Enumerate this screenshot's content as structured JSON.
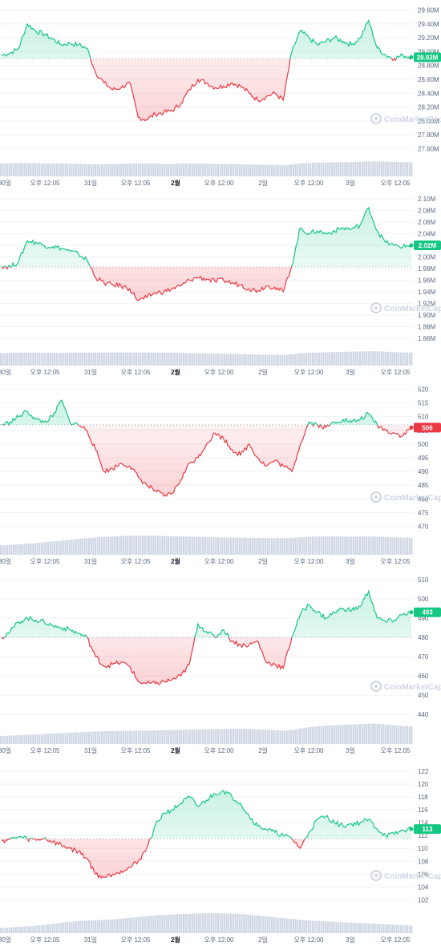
{
  "watermark": "CoinMarketCap",
  "colors": {
    "up": "#16c784",
    "down": "#ea3943",
    "volume": "#cfd6e4",
    "grid": "#f0f2f5",
    "baseline": "#a6b0c3"
  },
  "chart_data": [
    {
      "type": "line",
      "yticks": [
        "29.60M",
        "29.40M",
        "29.20M",
        "29.00M",
        "28.80M",
        "28.60M",
        "28.40M",
        "28.20M",
        "28.00M",
        "27.80M",
        "27.60M"
      ],
      "ylim": [
        27.57,
        29.63
      ],
      "baseline": 28.9,
      "current_label": "28.92M",
      "current_value": 28.92,
      "xticks": [
        "30일",
        "오후 12:05",
        "31일",
        "오후 12:05",
        "2월",
        "오후 12:00",
        "2일",
        "오후 12:00",
        "3일",
        "오후 12:05"
      ],
      "series": [
        {
          "values": [
            28.95,
            28.98,
            29.05,
            29.4,
            29.3,
            29.25,
            29.18,
            29.1,
            29.12,
            29.1,
            29.05,
            28.7,
            28.55,
            28.45,
            28.48,
            28.55,
            28.05,
            28.02,
            28.1,
            28.12,
            28.15,
            28.25,
            28.45,
            28.6,
            28.55,
            28.48,
            28.5,
            28.55,
            28.5,
            28.4,
            28.3,
            28.35,
            28.4,
            28.3,
            29.0,
            29.3,
            29.2,
            29.1,
            29.15,
            29.2,
            29.15,
            29.1,
            29.2,
            29.45,
            29.05,
            28.95,
            28.9,
            28.95,
            28.92
          ]
        }
      ],
      "volume": [
        0.62,
        0.63,
        0.64,
        0.64,
        0.63,
        0.62,
        0.62,
        0.62,
        0.61,
        0.6,
        0.59,
        0.58,
        0.58,
        0.59,
        0.6,
        0.61,
        0.62,
        0.62,
        0.61,
        0.6,
        0.6,
        0.61,
        0.62,
        0.62,
        0.61,
        0.6,
        0.6,
        0.59,
        0.58,
        0.57,
        0.56,
        0.55,
        0.55,
        0.54,
        0.58,
        0.62,
        0.65,
        0.66,
        0.67,
        0.68,
        0.68,
        0.69,
        0.7,
        0.72,
        0.72,
        0.7,
        0.69,
        0.68,
        0.68
      ]
    },
    {
      "type": "line",
      "yticks": [
        "2.10M",
        "2.08M",
        "2.06M",
        "2.04M",
        "2.02M",
        "2.00M",
        "1.98M",
        "1.96M",
        "1.94M",
        "1.92M",
        "1.90M",
        "1.88M",
        "1.86M"
      ],
      "ylim": [
        1.857,
        2.103
      ],
      "baseline": 1.983,
      "current_label": "2.02M",
      "current_value": 2.02,
      "xticks": [
        "30일",
        "오후 12:05",
        "31일",
        "오후 12:05",
        "2월",
        "오후 12:00",
        "2일",
        "오후 12:00",
        "3일",
        "오후 12:05"
      ],
      "series": [
        {
          "values": [
            1.985,
            1.983,
            1.992,
            2.028,
            2.025,
            2.02,
            2.018,
            2.015,
            2.01,
            2.005,
            1.995,
            1.965,
            1.955,
            1.952,
            1.95,
            1.945,
            1.925,
            1.93,
            1.938,
            1.94,
            1.945,
            1.95,
            1.96,
            1.965,
            1.962,
            1.958,
            1.96,
            1.955,
            1.952,
            1.945,
            1.942,
            1.95,
            1.948,
            1.94,
            1.985,
            2.05,
            2.04,
            2.045,
            2.04,
            2.045,
            2.05,
            2.048,
            2.055,
            2.085,
            2.045,
            2.025,
            2.02,
            2.018,
            2.02
          ]
        }
      ],
      "volume": [
        0.6,
        0.61,
        0.62,
        0.62,
        0.62,
        0.61,
        0.61,
        0.61,
        0.61,
        0.62,
        0.62,
        0.62,
        0.63,
        0.63,
        0.63,
        0.63,
        0.63,
        0.63,
        0.62,
        0.62,
        0.62,
        0.61,
        0.6,
        0.59,
        0.58,
        0.58,
        0.57,
        0.56,
        0.55,
        0.54,
        0.53,
        0.52,
        0.52,
        0.51,
        0.55,
        0.6,
        0.62,
        0.63,
        0.64,
        0.65,
        0.66,
        0.67,
        0.68,
        0.69,
        0.68,
        0.66,
        0.64,
        0.63,
        0.62
      ]
    },
    {
      "type": "line",
      "yticks": [
        "520",
        "515",
        "510",
        "505",
        "500",
        "495",
        "490",
        "485",
        "480",
        "475",
        "470"
      ],
      "ylim": [
        469,
        521
      ],
      "baseline": 507,
      "current_label": "506",
      "current_value": 506,
      "xticks": [
        "30일",
        "오후 12:05",
        "31일",
        "오후 12:05",
        "2월",
        "오후 12:00",
        "2일",
        "오후 12:00",
        "3일",
        "오후 12:05"
      ],
      "series": [
        {
          "values": [
            507,
            508,
            510,
            512,
            509,
            508,
            510,
            516,
            508,
            507,
            505,
            498,
            490,
            491,
            493,
            492,
            488,
            485,
            483,
            481,
            482,
            487,
            493,
            495,
            500,
            504,
            502,
            498,
            496,
            500,
            495,
            492,
            494,
            492,
            490,
            500,
            508,
            507,
            506,
            508,
            509,
            508,
            509,
            511,
            507,
            505,
            504,
            503,
            506
          ]
        }
      ],
      "volume": [
        0.45,
        0.47,
        0.5,
        0.53,
        0.56,
        0.6,
        0.64,
        0.68,
        0.72,
        0.76,
        0.8,
        0.83,
        0.86,
        0.88,
        0.9,
        0.91,
        0.92,
        0.92,
        0.91,
        0.9,
        0.89,
        0.88,
        0.87,
        0.86,
        0.85,
        0.84,
        0.83,
        0.82,
        0.82,
        0.81,
        0.81,
        0.8,
        0.8,
        0.8,
        0.82,
        0.85,
        0.87,
        0.88,
        0.88,
        0.88,
        0.87,
        0.87,
        0.88,
        0.88,
        0.87,
        0.85,
        0.83,
        0.82,
        0.81
      ]
    },
    {
      "type": "line",
      "yticks": [
        "510",
        "500",
        "490",
        "480",
        "470",
        "460",
        "450",
        "440"
      ],
      "ylim": [
        438,
        512
      ],
      "baseline": 480,
      "current_label": "493",
      "current_value": 493,
      "xticks": [
        "30일",
        "오후 12:05",
        "31일",
        "오후 12:05",
        "2월",
        "오후 12:00",
        "2일",
        "오후 12:00",
        "3일",
        "오후 12:05"
      ],
      "series": [
        {
          "values": [
            480,
            483,
            488,
            490,
            489,
            488,
            486,
            485,
            484,
            482,
            480,
            470,
            465,
            466,
            467,
            465,
            457,
            456,
            456,
            457,
            458,
            460,
            466,
            487,
            483,
            480,
            484,
            478,
            476,
            476,
            478,
            467,
            466,
            464,
            480,
            492,
            497,
            493,
            490,
            493,
            495,
            494,
            496,
            504,
            490,
            488,
            489,
            492,
            493
          ]
        }
      ],
      "volume": [
        0.38,
        0.4,
        0.42,
        0.44,
        0.46,
        0.48,
        0.5,
        0.52,
        0.54,
        0.56,
        0.58,
        0.6,
        0.61,
        0.62,
        0.63,
        0.63,
        0.64,
        0.64,
        0.65,
        0.66,
        0.67,
        0.68,
        0.69,
        0.7,
        0.71,
        0.72,
        0.72,
        0.73,
        0.73,
        0.72,
        0.7,
        0.68,
        0.66,
        0.64,
        0.68,
        0.75,
        0.82,
        0.86,
        0.88,
        0.9,
        0.92,
        0.94,
        0.96,
        0.98,
        0.96,
        0.92,
        0.88,
        0.86,
        0.84
      ]
    },
    {
      "type": "line",
      "yticks": [
        "122",
        "120",
        "118",
        "116",
        "114",
        "112",
        "110",
        "108",
        "106",
        "104",
        "102"
      ],
      "ylim": [
        100.8,
        123
      ],
      "baseline": 111.5,
      "current_label": "113",
      "current_value": 113,
      "xticks": [
        "30일",
        "오후 12:05",
        "31일",
        "오후 12:05",
        "2월",
        "오후 12:00",
        "2일",
        "오후 12:00",
        "3일",
        "오후 12:05"
      ],
      "series": [
        {
          "values": [
            111.2,
            111.4,
            111.8,
            111.5,
            111.3,
            111.6,
            111.0,
            110.5,
            110.0,
            109.5,
            108.5,
            106.0,
            105.5,
            106.0,
            106.5,
            107.0,
            108.0,
            110.0,
            113.5,
            115.5,
            116.0,
            117.0,
            118.0,
            116.5,
            117.5,
            118.5,
            119.0,
            118.0,
            117.0,
            115.0,
            113.5,
            113.0,
            112.5,
            112.0,
            111.5,
            110.0,
            112.5,
            114.5,
            115.0,
            114.0,
            113.5,
            113.8,
            114.0,
            114.5,
            113.0,
            112.0,
            112.2,
            112.8,
            113.0
          ]
        }
      ],
      "volume": [
        0.25,
        0.27,
        0.3,
        0.33,
        0.36,
        0.4,
        0.45,
        0.5,
        0.55,
        0.58,
        0.6,
        0.62,
        0.64,
        0.66,
        0.7,
        0.74,
        0.78,
        0.82,
        0.85,
        0.88,
        0.9,
        0.92,
        0.93,
        0.95,
        0.96,
        0.96,
        0.95,
        0.94,
        0.92,
        0.88,
        0.84,
        0.8,
        0.76,
        0.72,
        0.68,
        0.64,
        0.6,
        0.58,
        0.56,
        0.54,
        0.52,
        0.5,
        0.48,
        0.46,
        0.44,
        0.42,
        0.4,
        0.38,
        0.36
      ]
    }
  ]
}
